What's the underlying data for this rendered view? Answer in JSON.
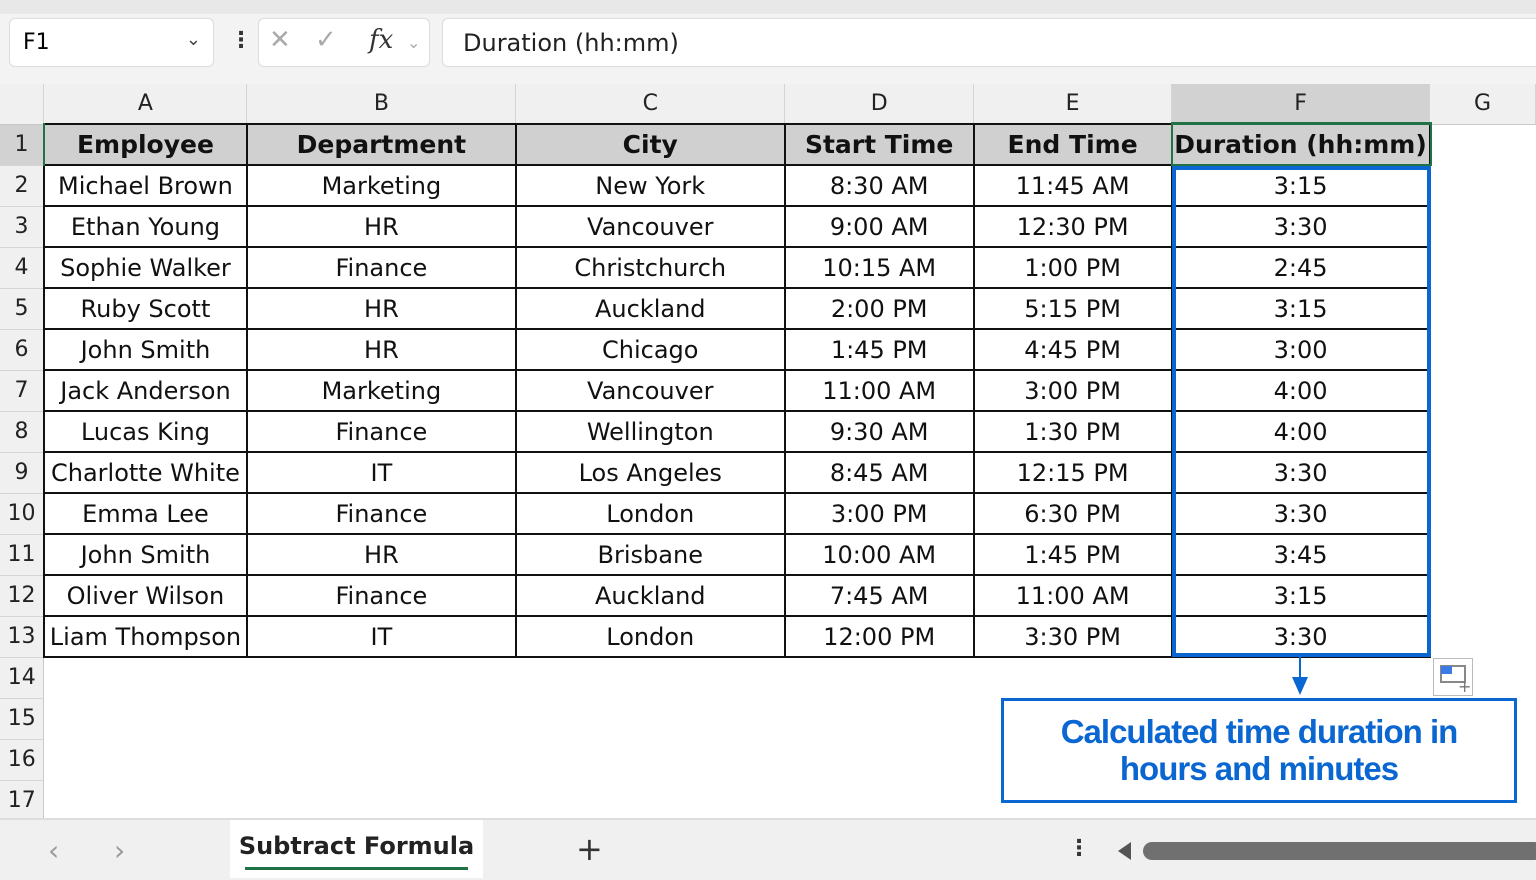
{
  "formula_bar": {
    "name_box": "F1",
    "formula": "Duration (hh:mm)",
    "fx": "fx"
  },
  "columns": [
    "A",
    "B",
    "C",
    "D",
    "E",
    "F",
    "G"
  ],
  "header": [
    "Employee",
    "Department",
    "City",
    "Start Time",
    "End Time",
    "Duration (hh:mm)"
  ],
  "rows": [
    [
      "Michael Brown",
      "Marketing",
      "New York",
      "8:30 AM",
      "11:45 AM",
      "3:15"
    ],
    [
      "Ethan Young",
      "HR",
      "Vancouver",
      "9:00 AM",
      "12:30 PM",
      "3:30"
    ],
    [
      "Sophie Walker",
      "Finance",
      "Christchurch",
      "10:15 AM",
      "1:00 PM",
      "2:45"
    ],
    [
      "Ruby Scott",
      "HR",
      "Auckland",
      "2:00 PM",
      "5:15 PM",
      "3:15"
    ],
    [
      "John Smith",
      "HR",
      "Chicago",
      "1:45 PM",
      "4:45 PM",
      "3:00"
    ],
    [
      "Jack Anderson",
      "Marketing",
      "Vancouver",
      "11:00 AM",
      "3:00 PM",
      "4:00"
    ],
    [
      "Lucas King",
      "Finance",
      "Wellington",
      "9:30 AM",
      "1:30 PM",
      "4:00"
    ],
    [
      "Charlotte White",
      "IT",
      "Los Angeles",
      "8:45 AM",
      "12:15 PM",
      "3:30"
    ],
    [
      "Emma Lee",
      "Finance",
      "London",
      "3:00 PM",
      "6:30 PM",
      "3:30"
    ],
    [
      "John Smith",
      "HR",
      "Brisbane",
      "10:00 AM",
      "1:45 PM",
      "3:45"
    ],
    [
      "Oliver Wilson",
      "Finance",
      "Auckland",
      "7:45 AM",
      "11:00 AM",
      "3:15"
    ],
    [
      "Liam Thompson",
      "IT",
      "London",
      "12:00 PM",
      "3:30 PM",
      "3:30"
    ]
  ],
  "row_numbers": [
    "1",
    "2",
    "3",
    "4",
    "5",
    "6",
    "7",
    "8",
    "9",
    "10",
    "11",
    "12",
    "13",
    "14",
    "15",
    "16",
    "17"
  ],
  "callout": {
    "line1": "Calculated time duration in",
    "line2": "hours and minutes"
  },
  "sheet_tabs": {
    "active": "Subtract Formula",
    "add": "+"
  },
  "colors": {
    "accent": "#0a66d0",
    "excel_green": "#217346"
  }
}
